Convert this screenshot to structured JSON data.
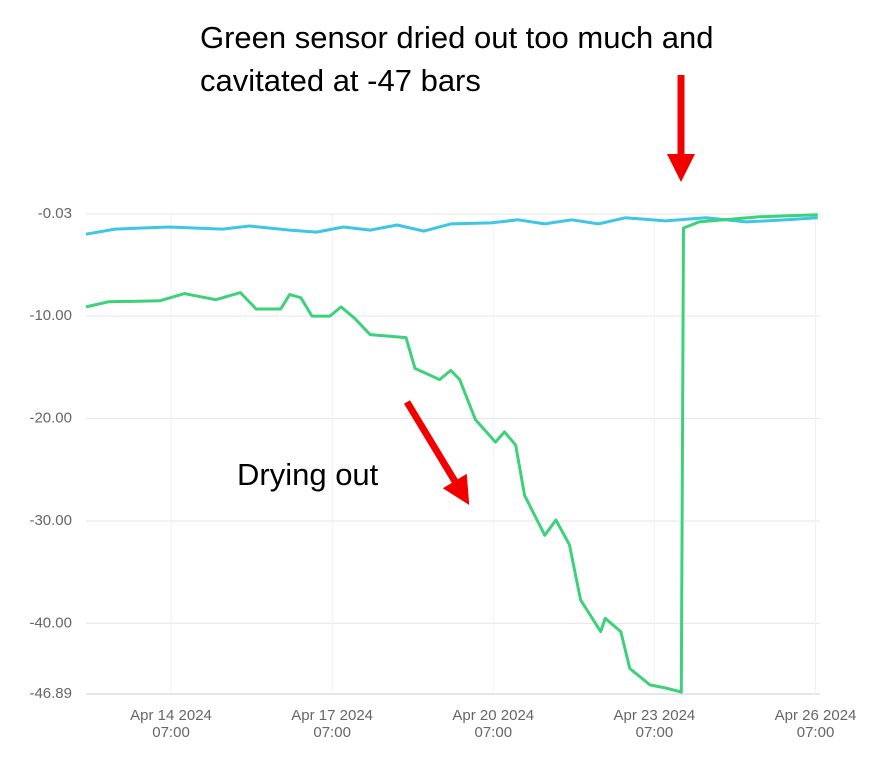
{
  "chart_data": {
    "type": "line",
    "annotations": [
      "Green sensor dried out too much and",
      "cavitated at -47 bars",
      "Drying out"
    ],
    "xlim": [
      "2024-04-12T17:00",
      "2024-04-26T09:00"
    ],
    "xticks": [
      {
        "value": "2024-04-14T07:00",
        "label": "Apr 14 2024 07:00"
      },
      {
        "value": "2024-04-17T07:00",
        "label": "Apr 17 2024 07:00"
      },
      {
        "value": "2024-04-20T07:00",
        "label": "Apr 20 2024 07:00"
      },
      {
        "value": "2024-04-23T07:00",
        "label": "Apr 23 2024 07:00"
      },
      {
        "value": "2024-04-26T07:00",
        "label": "Apr 26 2024 07:00"
      }
    ],
    "ylim": [
      -46.89,
      -0.03
    ],
    "yticks": [
      -0.03,
      {
        "value": -10,
        "label": "-10.00"
      },
      {
        "value": -20,
        "label": "-20.00"
      },
      {
        "value": -30,
        "label": "-30.00"
      },
      {
        "value": -40,
        "label": "-40.00"
      },
      -46.89
    ],
    "grid": true,
    "series": [
      {
        "color": "#3ec6e4",
        "x": [
          "2024-04-12T17:00",
          "2024-04-13T06:00",
          "2024-04-14T06:00",
          "2024-04-15T06:00",
          "2024-04-15T18:00",
          "2024-04-16T12:00",
          "2024-04-17T00:00",
          "2024-04-17T12:00",
          "2024-04-18T00:00",
          "2024-04-18T12:00",
          "2024-04-19T00:00",
          "2024-04-19T12:00",
          "2024-04-20T06:00",
          "2024-04-20T18:00",
          "2024-04-21T06:00",
          "2024-04-21T18:00",
          "2024-04-22T06:00",
          "2024-04-22T18:00",
          "2024-04-23T12:00",
          "2024-04-24T06:00",
          "2024-04-25T00:00",
          "2024-04-25T18:00",
          "2024-04-26T08:00"
        ],
        "values": [
          -2.0,
          -1.5,
          -1.3,
          -1.5,
          -1.2,
          -1.6,
          -1.8,
          -1.3,
          -1.6,
          -1.1,
          -1.7,
          -1.0,
          -0.9,
          -0.6,
          -1.0,
          -0.6,
          -1.0,
          -0.4,
          -0.7,
          -0.4,
          -0.8,
          -0.6,
          -0.4
        ]
      },
      {
        "color": "#3dd27a",
        "x": [
          "2024-04-12T17:00",
          "2024-04-13T03:00",
          "2024-04-14T02:00",
          "2024-04-14T13:00",
          "2024-04-15T03:00",
          "2024-04-15T14:00",
          "2024-04-15T21:00",
          "2024-04-16T08:00",
          "2024-04-16T12:00",
          "2024-04-16T17:00",
          "2024-04-16T22:00",
          "2024-04-17T06:00",
          "2024-04-17T11:00",
          "2024-04-17T17:00",
          "2024-04-18T00:00",
          "2024-04-18T16:00",
          "2024-04-18T20:00",
          "2024-04-19T07:00",
          "2024-04-19T12:00",
          "2024-04-19T16:00",
          "2024-04-19T23:00",
          "2024-04-20T08:00",
          "2024-04-20T12:00",
          "2024-04-20T17:00",
          "2024-04-20T21:00",
          "2024-04-21T06:00",
          "2024-04-21T11:00",
          "2024-04-21T17:00",
          "2024-04-21T22:00",
          "2024-04-22T07:00",
          "2024-04-22T09:00",
          "2024-04-22T16:00",
          "2024-04-22T20:00",
          "2024-04-23T05:00",
          "2024-04-23T12:00",
          "2024-04-23T19:00",
          "2024-04-23T20:00",
          "2024-04-24T03:00",
          "2024-04-25T06:00",
          "2024-04-26T08:00"
        ],
        "values": [
          -9.1,
          -8.6,
          -8.5,
          -7.8,
          -8.4,
          -7.7,
          -9.3,
          -9.3,
          -7.9,
          -8.2,
          -10.0,
          -10.0,
          -9.1,
          -10.2,
          -11.8,
          -12.1,
          -15.1,
          -16.2,
          -15.3,
          -16.2,
          -20.1,
          -22.3,
          -21.3,
          -22.6,
          -27.5,
          -31.4,
          -29.9,
          -32.3,
          -37.7,
          -40.8,
          -39.5,
          -40.8,
          -44.4,
          -46.0,
          -46.3,
          -46.7,
          -1.4,
          -0.8,
          -0.3,
          -0.1
        ]
      }
    ]
  }
}
